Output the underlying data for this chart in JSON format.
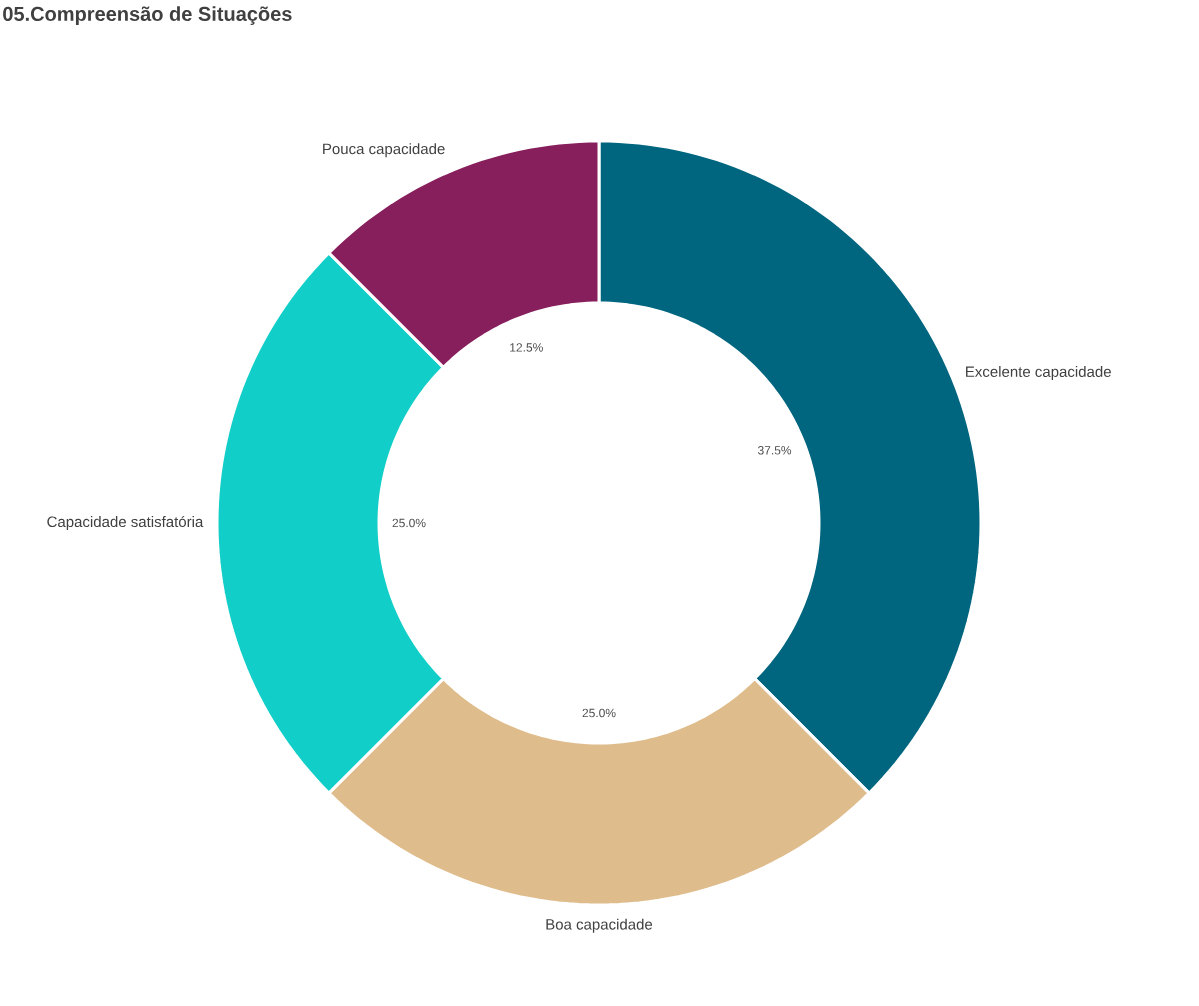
{
  "chart_data": {
    "type": "donut",
    "title": "05.Compreensão de Situações",
    "categories": [
      "Excelente capacidade",
      "Boa capacidade",
      "Capacidade satisfatória",
      "Pouca capacidade"
    ],
    "values": [
      37.5,
      25,
      25,
      12.5
    ],
    "colors": [
      "#00657f",
      "#dfbc8c",
      "#12cec8",
      "#871f5c"
    ],
    "value_labels": [
      "37.5%",
      "25.0%",
      "25.0%",
      "12.5%"
    ]
  }
}
